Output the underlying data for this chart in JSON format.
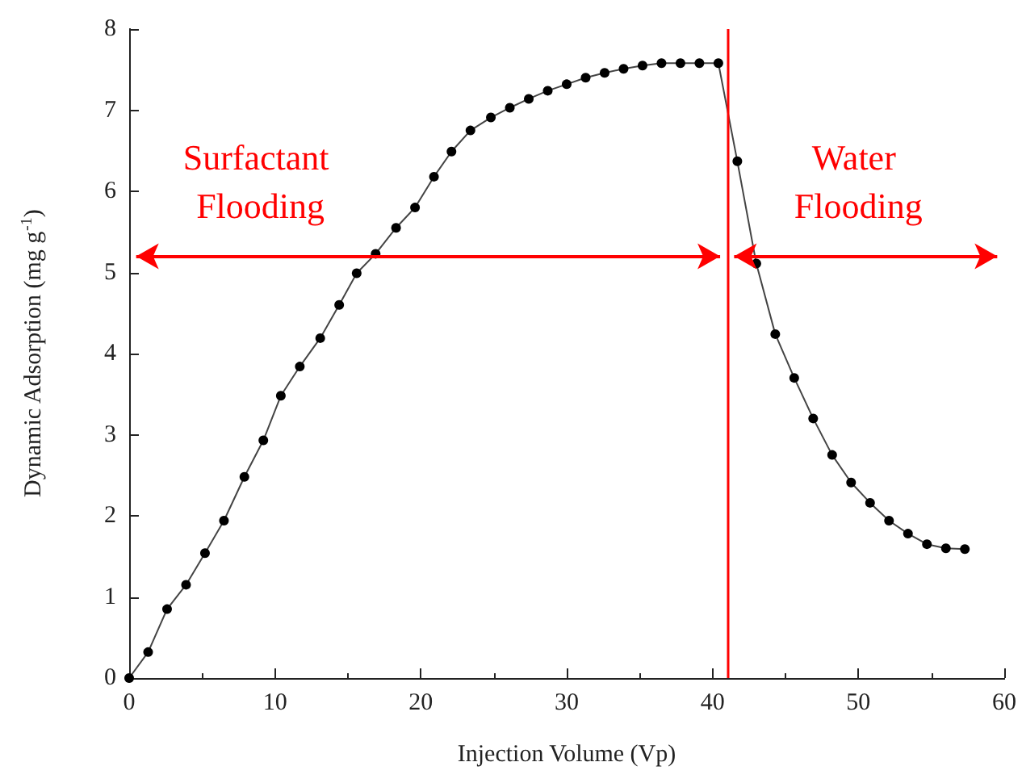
{
  "chart_data": {
    "type": "line",
    "xlabel": "Injection Volume (Vp)",
    "ylabel": "Dynamic Adsorption (mg g$^{-1}$)",
    "x": [
      0,
      1.3,
      2.6,
      3.9,
      5.2,
      6.5,
      7.9,
      9.2,
      10.4,
      11.7,
      13.1,
      14.4,
      15.6,
      16.9,
      18.3,
      19.6,
      20.9,
      22.1,
      23.4,
      24.8,
      26.1,
      27.4,
      28.7,
      30.0,
      31.3,
      32.6,
      33.9,
      35.2,
      36.5,
      37.8,
      39.1,
      40.4,
      41.7,
      43.0,
      44.3,
      45.6,
      46.9,
      48.2,
      49.5,
      50.8,
      52.1,
      53.4,
      54.7,
      56.0,
      57.3
    ],
    "series": [
      {
        "color": "#000000",
        "values": [
          0,
          0.32,
          0.85,
          1.15,
          1.54,
          1.94,
          2.48,
          2.93,
          3.48,
          3.84,
          4.19,
          4.6,
          4.99,
          5.23,
          5.55,
          5.8,
          6.18,
          6.49,
          6.75,
          6.91,
          7.03,
          7.14,
          7.24,
          7.32,
          7.4,
          7.46,
          7.51,
          7.55,
          7.58,
          7.58,
          7.58,
          7.58,
          6.37,
          5.11,
          4.24,
          3.7,
          3.2,
          2.75,
          2.41,
          2.16,
          1.94,
          1.78,
          1.65,
          1.6,
          1.59
        ]
      }
    ],
    "xlim": [
      0,
      60
    ],
    "xticks": [
      0,
      10,
      20,
      30,
      40,
      50,
      60
    ],
    "ylim": [
      0,
      8
    ],
    "yticks": [
      0,
      1,
      2,
      3,
      4,
      5,
      6,
      7,
      8
    ],
    "ref_lines": [
      {
        "axis": "x",
        "value": 41,
        "color": "#ff0000"
      }
    ],
    "annotations": [
      "Surfactant Flooding",
      "Water Flooding"
    ],
    "marker": "circle",
    "line_style": "solid",
    "grid": false
  }
}
